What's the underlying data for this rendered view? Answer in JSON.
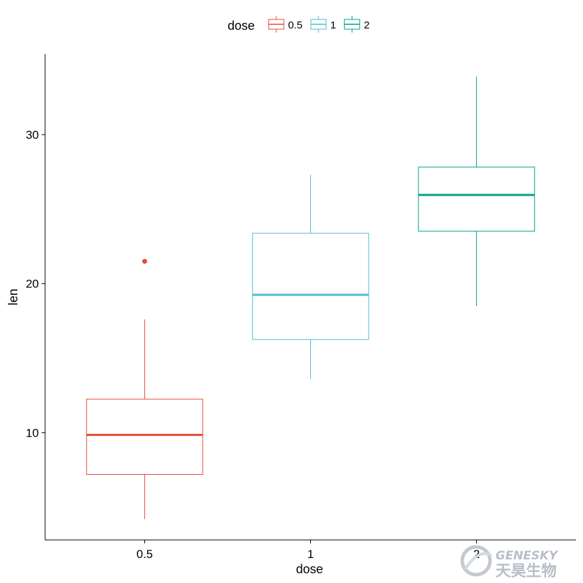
{
  "chart_data": {
    "type": "boxplot",
    "xlabel": "dose",
    "ylabel": "len",
    "categories": [
      "0.5",
      "1",
      "2"
    ],
    "ylim": [
      2.8,
      35.4
    ],
    "yticks": [
      10,
      20,
      30
    ],
    "grid": false,
    "legend": {
      "title": "dose",
      "position": "top",
      "entries": [
        "0.5",
        "1",
        "2"
      ]
    },
    "series": [
      {
        "category": "0.5",
        "color": "#e64b35",
        "min": 4.2,
        "q1": 7.2,
        "median": 9.85,
        "q3": 12.25,
        "max": 17.6,
        "outliers": [
          21.5
        ]
      },
      {
        "category": "1",
        "color": "#4dbbd5",
        "min": 13.6,
        "q1": 16.25,
        "median": 19.25,
        "q3": 23.38,
        "max": 27.3,
        "outliers": []
      },
      {
        "category": "2",
        "color": "#00a087",
        "min": 18.5,
        "q1": 23.52,
        "median": 25.95,
        "q3": 27.82,
        "max": 33.9,
        "outliers": []
      }
    ]
  },
  "watermark": {
    "text_en": "GENESKY",
    "text_cn": "天昊生物"
  }
}
